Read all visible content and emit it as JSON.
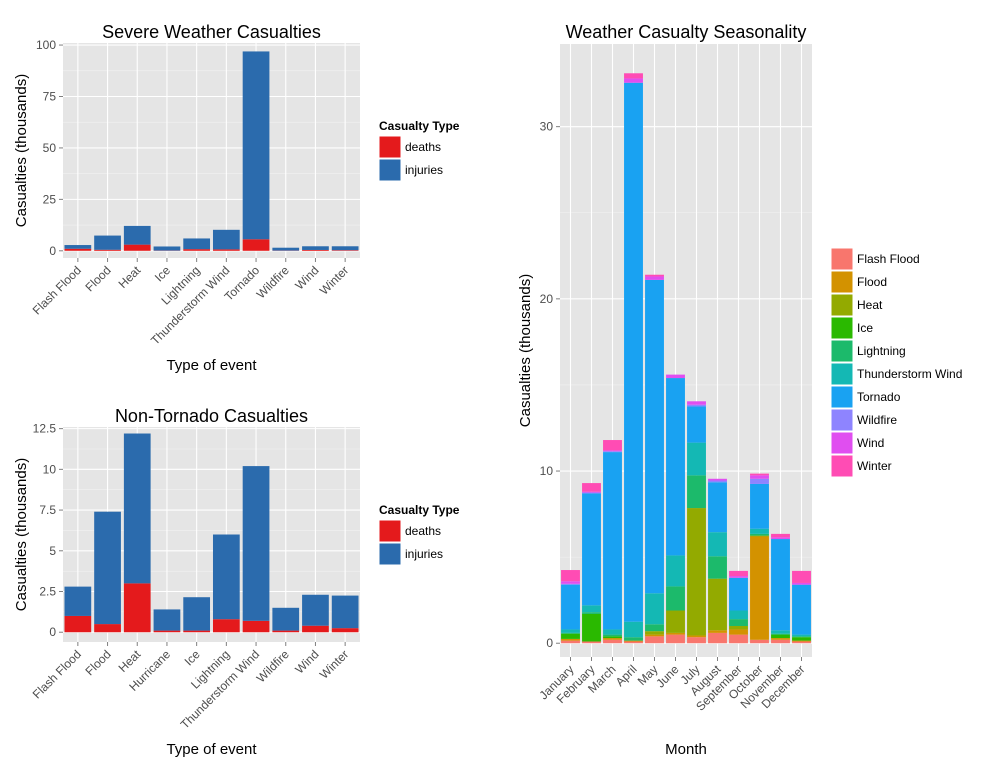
{
  "chart_data": [
    {
      "type": "bar",
      "stacked": true,
      "title": "Severe Weather Casualties",
      "xlabel": "Type of event",
      "ylabel": "Casualties (thousands)",
      "categories": [
        "Flash Flood",
        "Flood",
        "Heat",
        "Ice",
        "Lightning",
        "Thunderstorm Wind",
        "Tornado",
        "Wildfire",
        "Wind",
        "Winter"
      ],
      "series": [
        {
          "name": "deaths",
          "values": [
            1.0,
            0.5,
            3.0,
            0.1,
            0.8,
            0.7,
            5.6,
            0.1,
            0.4,
            0.3
          ]
        },
        {
          "name": "injuries",
          "values": [
            1.8,
            6.9,
            9.1,
            2.0,
            5.2,
            9.5,
            91.3,
            1.4,
            1.8,
            1.9
          ]
        }
      ],
      "ylim": [
        -3.5,
        101
      ],
      "yticks": [
        0,
        25,
        50,
        75,
        100
      ],
      "ytick_labels": [
        "0",
        "25",
        "50",
        "75",
        "100"
      ],
      "legend": {
        "title": "Casualty Type",
        "position": "right"
      },
      "colors": {
        "deaths": "#e41a1c",
        "injuries": "#2b6bad"
      }
    },
    {
      "type": "bar",
      "stacked": true,
      "title": "Non-Tornado Casualties",
      "xlabel": "Type of event",
      "ylabel": "Casualties (thousands)",
      "categories": [
        "Flash Flood",
        "Flood",
        "Heat",
        "Hurricane",
        "Ice",
        "Lightning",
        "Thunderstorm Wind",
        "Wildfire",
        "Wind",
        "Winter"
      ],
      "series": [
        {
          "name": "deaths",
          "values": [
            1.0,
            0.5,
            3.0,
            0.1,
            0.1,
            0.8,
            0.7,
            0.1,
            0.4,
            0.25
          ]
        },
        {
          "name": "injuries",
          "values": [
            1.8,
            6.9,
            9.2,
            1.3,
            2.05,
            5.2,
            9.5,
            1.4,
            1.9,
            2.0
          ]
        }
      ],
      "ylim": [
        -0.6,
        12.6
      ],
      "yticks": [
        0,
        2.5,
        5,
        7.5,
        10,
        12.5
      ],
      "ytick_labels": [
        "0",
        "2.5",
        "5",
        "7.5",
        "10",
        "12.5"
      ],
      "legend": {
        "title": "Casualty Type",
        "position": "right"
      },
      "colors": {
        "deaths": "#e41a1c",
        "injuries": "#2b6bad"
      }
    },
    {
      "type": "bar",
      "stacked": true,
      "title": "Weather Casualty Seasonality",
      "xlabel": "Month",
      "ylabel": "Casualties (thousands)",
      "categories": [
        "January",
        "February",
        "March",
        "April",
        "May",
        "June",
        "July",
        "August",
        "September",
        "October",
        "November",
        "December"
      ],
      "series": [
        {
          "name": "Flash Flood",
          "values": [
            0.15,
            0.1,
            0.2,
            0.1,
            0.4,
            0.5,
            0.35,
            0.6,
            0.5,
            0.2,
            0.2,
            0.1
          ]
        },
        {
          "name": "Flood",
          "values": [
            0.1,
            0.0,
            0.1,
            0.05,
            0.1,
            0.1,
            0.1,
            0.15,
            0.3,
            6.0,
            0.1,
            0.05
          ]
        },
        {
          "name": "Heat",
          "values": [
            0.0,
            0.0,
            0.0,
            0.0,
            0.2,
            1.3,
            7.4,
            3.0,
            0.2,
            0.05,
            0.0,
            0.0
          ]
        },
        {
          "name": "Ice",
          "values": [
            0.3,
            1.6,
            0.1,
            0.0,
            0.0,
            0.0,
            0.0,
            0.0,
            0.0,
            0.0,
            0.2,
            0.2
          ]
        },
        {
          "name": "Lightning",
          "values": [
            0.05,
            0.1,
            0.1,
            0.2,
            0.4,
            1.4,
            1.9,
            1.3,
            0.4,
            0.1,
            0.05,
            0.05
          ]
        },
        {
          "name": "Thunderstorm Wind",
          "values": [
            0.2,
            0.4,
            0.3,
            0.9,
            1.8,
            1.8,
            1.9,
            1.4,
            0.5,
            0.3,
            0.2,
            0.1
          ]
        },
        {
          "name": "Tornado",
          "values": [
            2.6,
            6.5,
            10.3,
            31.3,
            18.2,
            10.3,
            2.1,
            2.9,
            1.9,
            2.6,
            5.3,
            2.9
          ]
        },
        {
          "name": "Wildfire",
          "values": [
            0.05,
            0.05,
            0.05,
            0.0,
            0.0,
            0.0,
            0.1,
            0.1,
            0.0,
            0.3,
            0.0,
            0.0
          ]
        },
        {
          "name": "Wind",
          "values": [
            0.15,
            0.05,
            0.05,
            0.25,
            0.2,
            0.2,
            0.2,
            0.1,
            0.1,
            0.2,
            0.1,
            0.1
          ]
        },
        {
          "name": "Winter",
          "values": [
            0.65,
            0.5,
            0.6,
            0.3,
            0.1,
            0.0,
            0.0,
            0.0,
            0.3,
            0.1,
            0.2,
            0.7
          ]
        }
      ],
      "ylim": [
        -0.8,
        34.8
      ],
      "yticks": [
        0,
        10,
        20,
        30
      ],
      "ytick_labels": [
        "0",
        "10",
        "20",
        "30"
      ],
      "legend": {
        "title": "",
        "position": "right"
      },
      "colors": {
        "Flash Flood": "#f8766d",
        "Flood": "#d39200",
        "Heat": "#93aa00",
        "Ice": "#2ab900",
        "Lightning": "#1cba6b",
        "Thunderstorm Wind": "#14b8b4",
        "Tornado": "#19a2f2",
        "Wildfire": "#8e84ff",
        "Wind": "#e04ef0",
        "Winter": "#ff4cb4"
      }
    }
  ]
}
